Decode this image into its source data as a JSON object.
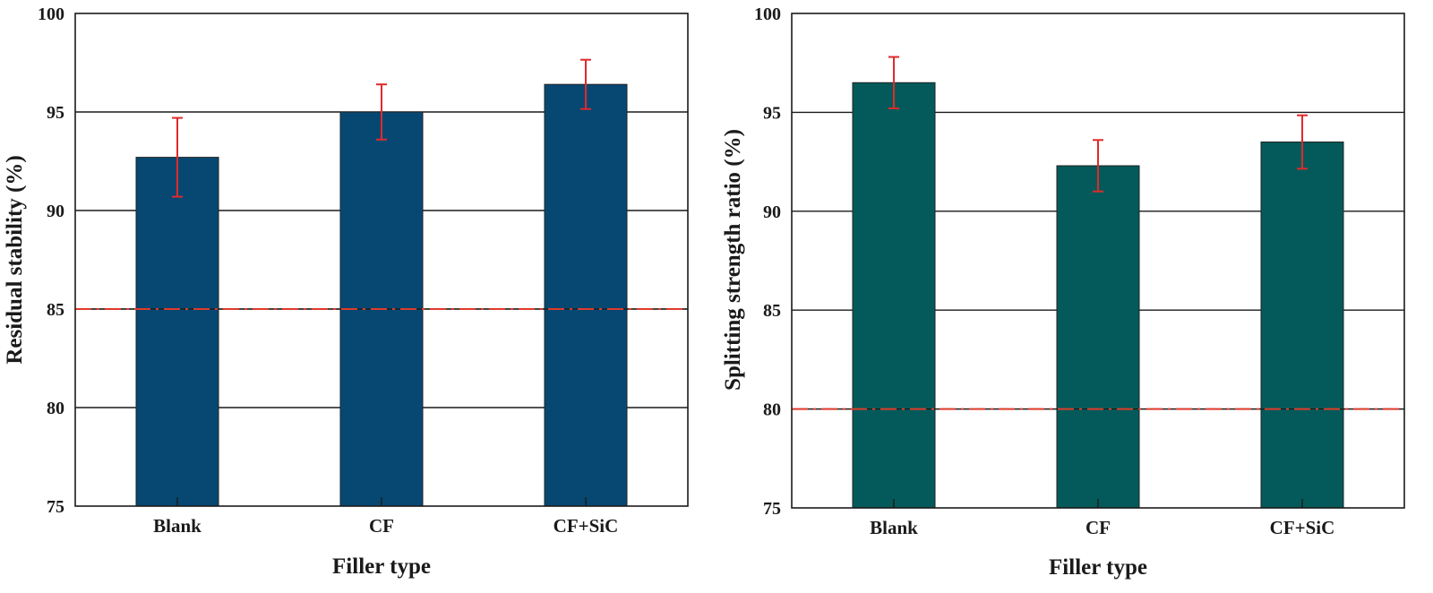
{
  "chart_data": [
    {
      "type": "bar",
      "categories": [
        "Blank",
        "CF",
        "CF+SiC"
      ],
      "values": [
        92.7,
        95.0,
        96.4
      ],
      "errors": [
        2.0,
        1.4,
        1.25
      ],
      "ylim": [
        75,
        100
      ],
      "yticks": [
        75,
        80,
        85,
        90,
        95,
        100
      ],
      "ylabel": "Residual stability (%)",
      "xlabel": "Filler type",
      "reference_line": 85,
      "bar_color": "#064872",
      "error_color": "#e02a2a",
      "reference_color": "#e03a2a"
    },
    {
      "type": "bar",
      "categories": [
        "Blank",
        "CF",
        "CF+SiC"
      ],
      "values": [
        96.5,
        92.3,
        93.5
      ],
      "errors": [
        1.3,
        1.3,
        1.35
      ],
      "ylim": [
        75,
        100
      ],
      "yticks": [
        75,
        80,
        85,
        90,
        95,
        100
      ],
      "ylabel": "Splitting strength ratio (%)",
      "xlabel": "Filler type",
      "reference_line": 80,
      "bar_color": "#045a5a",
      "error_color": "#e02a2a",
      "reference_color": "#e03a2a"
    }
  ]
}
